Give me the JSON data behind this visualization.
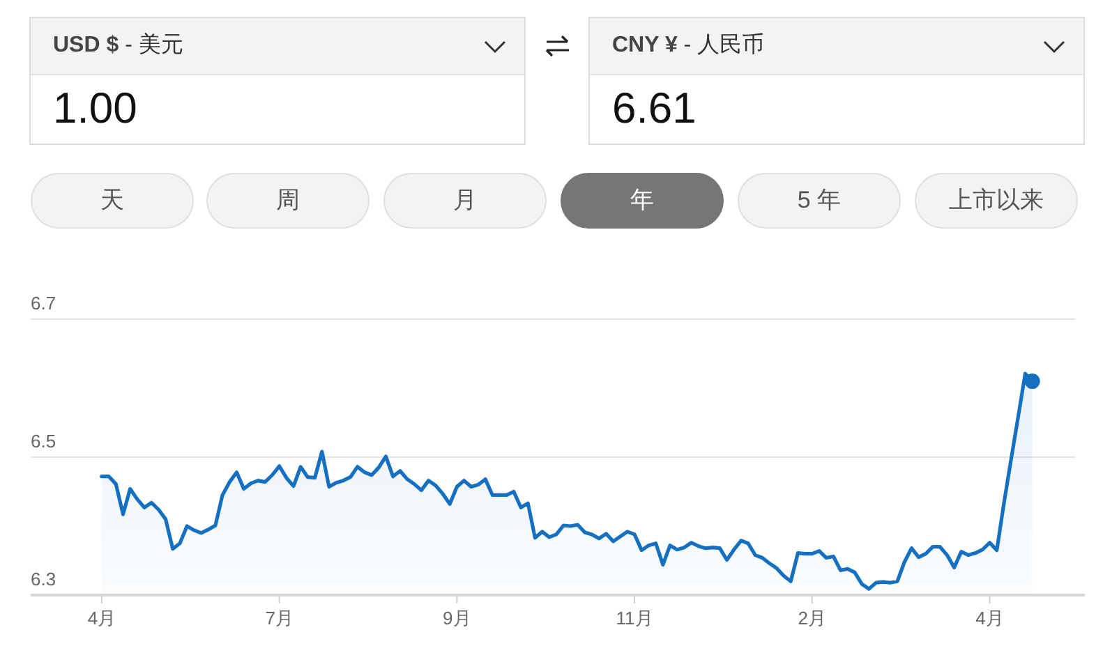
{
  "chart_data": {
    "type": "area",
    "annotations": [
      "USD $ - 美元",
      "1.00",
      "CNY ¥ - 人民币",
      "6.61",
      "天",
      "周",
      "月",
      "年",
      "5 年",
      "上市以来"
    ],
    "categories": [
      null,
      null,
      null,
      null,
      null,
      null,
      null,
      null,
      null,
      null,
      "4月",
      null,
      null,
      null,
      null,
      null,
      null,
      null,
      null,
      null,
      null,
      null,
      null,
      null,
      null,
      null,
      null,
      null,
      null,
      null,
      null,
      null,
      null,
      null,
      null,
      "7月",
      null,
      null,
      null,
      null,
      null,
      null,
      null,
      null,
      null,
      null,
      null,
      null,
      null,
      null,
      null,
      null,
      null,
      null,
      null,
      null,
      null,
      null,
      null,
      null,
      "9月",
      null,
      null,
      null,
      null,
      null,
      null,
      null,
      null,
      null,
      null,
      null,
      null,
      null,
      null,
      null,
      null,
      null,
      null,
      null,
      null,
      null,
      null,
      null,
      null,
      "11月",
      null,
      null,
      null,
      null,
      null,
      null,
      null,
      null,
      null,
      null,
      null,
      null,
      null,
      null,
      null,
      null,
      null,
      null,
      null,
      null,
      null,
      null,
      null,
      null,
      "2月",
      null,
      null,
      null,
      null,
      null,
      null,
      null,
      null,
      null,
      null,
      null,
      null,
      null,
      null,
      null,
      null,
      null,
      null,
      null,
      null,
      null,
      null,
      null,
      null,
      "4月",
      null,
      null,
      null,
      null,
      null,
      null,
      null,
      null,
      null,
      null,
      null,
      null,
      null
    ],
    "ylim": [
      6.3,
      6.7
    ],
    "yticks": [
      6.3,
      6.5,
      6.7
    ],
    "grid": "y",
    "series": [
      {
        "color": "#1570c2",
        "values": [
          null,
          null,
          null,
          null,
          null,
          null,
          null,
          null,
          null,
          null,
          6.472,
          6.472,
          6.461,
          6.417,
          6.454,
          6.439,
          6.427,
          6.434,
          6.424,
          6.41,
          6.367,
          6.375,
          6.4,
          6.394,
          6.39,
          6.395,
          6.401,
          6.445,
          6.464,
          6.478,
          6.454,
          6.462,
          6.466,
          6.464,
          6.474,
          6.487,
          6.47,
          6.458,
          6.486,
          6.471,
          6.47,
          6.508,
          6.457,
          6.463,
          6.466,
          6.471,
          6.486,
          6.478,
          6.474,
          6.485,
          6.501,
          6.472,
          6.48,
          6.468,
          6.461,
          6.452,
          6.466,
          6.459,
          6.447,
          6.432,
          6.457,
          6.466,
          6.457,
          6.46,
          6.468,
          6.445,
          6.445,
          6.445,
          6.45,
          6.427,
          6.433,
          6.383,
          6.392,
          6.384,
          6.388,
          6.401,
          6.4,
          6.402,
          6.391,
          6.388,
          6.382,
          6.389,
          6.378,
          6.385,
          6.392,
          6.388,
          6.365,
          6.372,
          6.375,
          6.344,
          6.372,
          6.366,
          6.369,
          6.376,
          6.371,
          6.368,
          6.369,
          6.368,
          6.351,
          6.366,
          6.379,
          6.375,
          6.358,
          6.354,
          6.346,
          6.339,
          6.328,
          6.32,
          6.361,
          6.36,
          6.36,
          6.364,
          6.354,
          6.356,
          6.336,
          6.338,
          6.333,
          6.316,
          6.309,
          6.318,
          6.319,
          6.318,
          6.32,
          6.348,
          6.368,
          6.355,
          6.36,
          6.37,
          6.37,
          6.358,
          6.34,
          6.363,
          6.358,
          6.361,
          6.366,
          6.376,
          6.365,
          6.433,
          6.496,
          6.558,
          6.621,
          6.61,
          null,
          null,
          null,
          null,
          null,
          null,
          null
        ]
      },
      {
        "type": "scatter",
        "marker": "circle",
        "color": "#1570c2",
        "values": [
          null,
          null,
          null,
          null,
          null,
          null,
          null,
          null,
          null,
          null,
          null,
          null,
          null,
          null,
          null,
          null,
          null,
          null,
          null,
          null,
          null,
          null,
          null,
          null,
          null,
          null,
          null,
          null,
          null,
          null,
          null,
          null,
          null,
          null,
          null,
          null,
          null,
          null,
          null,
          null,
          null,
          null,
          null,
          null,
          null,
          null,
          null,
          null,
          null,
          null,
          null,
          null,
          null,
          null,
          null,
          null,
          null,
          null,
          null,
          null,
          null,
          null,
          null,
          null,
          null,
          null,
          null,
          null,
          null,
          null,
          null,
          null,
          null,
          null,
          null,
          null,
          null,
          null,
          null,
          null,
          null,
          null,
          null,
          null,
          null,
          null,
          null,
          null,
          null,
          null,
          null,
          null,
          null,
          null,
          null,
          null,
          null,
          null,
          null,
          null,
          null,
          null,
          null,
          null,
          null,
          null,
          null,
          null,
          null,
          null,
          null,
          null,
          null,
          null,
          null,
          null,
          null,
          null,
          null,
          null,
          null,
          null,
          null,
          null,
          null,
          null,
          null,
          null,
          null,
          null,
          null,
          null,
          null,
          null,
          null,
          null,
          null,
          null,
          null,
          null,
          null,
          6.61,
          null,
          null,
          null,
          null,
          null,
          null,
          null
        ]
      }
    ]
  }
}
